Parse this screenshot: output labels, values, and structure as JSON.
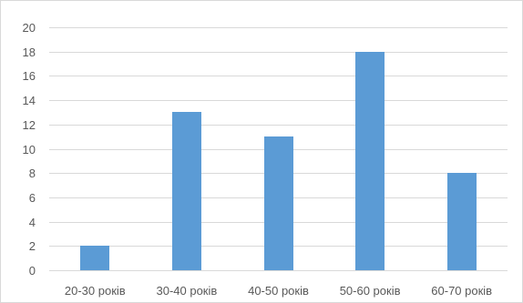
{
  "chart_data": {
    "type": "bar",
    "title": "",
    "xlabel": "",
    "ylabel": "",
    "categories": [
      "20-30 років",
      "30-40 років",
      "40-50 років",
      "50-60 років",
      "60-70 років"
    ],
    "series": [
      {
        "values": [
          2,
          13,
          11,
          18,
          8
        ]
      }
    ],
    "ylim": [
      0,
      20
    ],
    "ytick_step": 2,
    "yticks": [
      "0",
      "2",
      "4",
      "6",
      "8",
      "10",
      "12",
      "14",
      "16",
      "18",
      "20"
    ],
    "grid": "horizontal",
    "legend": "none",
    "bar_color": "#5b9bd5",
    "grid_color": "#d9d9d9",
    "label_color": "#595959"
  }
}
